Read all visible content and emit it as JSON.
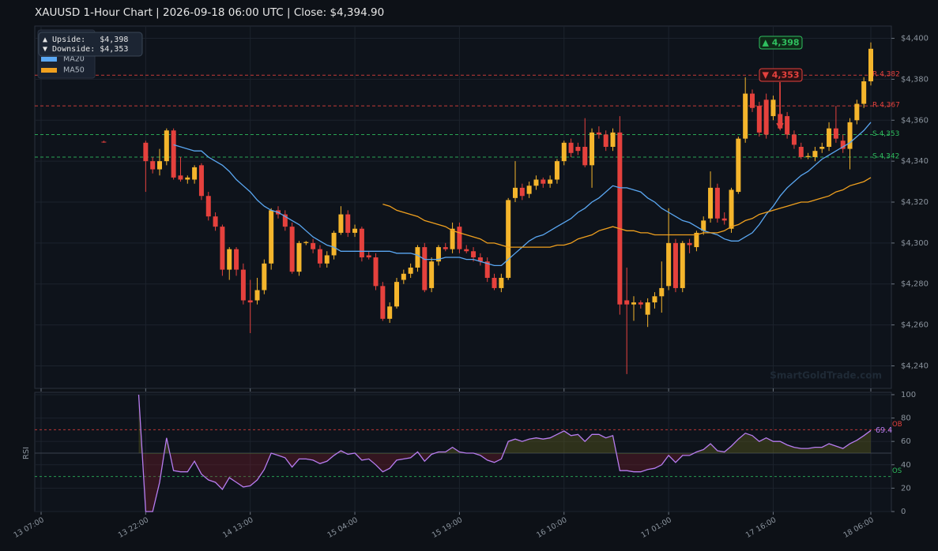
{
  "chart_data": [
    {
      "type": "candlestick",
      "title": "XAUUSD  1-Hour Chart  |  2026-09-18 06:00 UTC  |  Close: $4,394.90",
      "categories": [
        "13 07:00",
        null,
        null,
        null,
        null,
        null,
        null,
        null,
        null,
        null,
        null,
        null,
        null,
        null,
        null,
        "13 22:00",
        null,
        null,
        null,
        null,
        null,
        null,
        null,
        null,
        null,
        null,
        null,
        null,
        null,
        null,
        "14 13:00",
        null,
        null,
        null,
        null,
        null,
        null,
        null,
        null,
        null,
        null,
        null,
        null,
        null,
        null,
        "15 04:00",
        null,
        null,
        null,
        null,
        null,
        null,
        null,
        null,
        null,
        null,
        null,
        null,
        null,
        null,
        "15 19:00",
        null,
        null,
        null,
        null,
        null,
        null,
        null,
        null,
        null,
        null,
        null,
        null,
        null,
        null,
        "16 10:00",
        null,
        null,
        null,
        null,
        null,
        null,
        null,
        null,
        null,
        null,
        null,
        null,
        null,
        null,
        "17 01:00",
        null,
        null,
        null,
        null,
        null,
        null,
        null,
        null,
        null,
        null,
        null,
        null,
        null,
        null,
        "17 16:00",
        null,
        null,
        null,
        null,
        null,
        null,
        null,
        null,
        null,
        null,
        null,
        null,
        null,
        "18 06:00"
      ],
      "open": [
        null,
        null,
        null,
        null,
        null,
        null,
        null,
        null,
        null,
        4349.5,
        null,
        null,
        null,
        null,
        null,
        4349,
        4340,
        4336,
        4340,
        4355,
        4333,
        4331,
        4331,
        4338,
        4323,
        4313,
        4308,
        4287,
        4297,
        4287,
        4272,
        4272,
        4277,
        4290,
        4316,
        4314,
        4308,
        4286,
        4300,
        4300,
        4297,
        4290,
        4294,
        4305,
        4314,
        4305,
        4307,
        4294,
        4293,
        4279,
        4263,
        4269,
        4282,
        4285,
        4288,
        4298,
        4278,
        4291,
        4298,
        4297,
        4308,
        4297,
        4296,
        4293,
        4291,
        4283,
        4278,
        4283,
        4322,
        4327,
        4324,
        4328,
        4331,
        4329,
        4331,
        4340,
        4349,
        4347,
        4347,
        4338,
        4354,
        4353,
        4347,
        4354,
        4272,
        4270,
        4271,
        4265,
        4271,
        4274,
        4279,
        4300,
        4278,
        4300,
        4298,
        4306,
        4312,
        4327,
        4312,
        4307,
        4325,
        4351,
        4373,
        4367,
        4370,
        4362,
        4363,
        4362,
        4353,
        4347,
        4342,
        4342,
        4346,
        4347,
        4356,
        4350,
        4346,
        4360,
        4368,
        4379
      ],
      "high": [
        null,
        null,
        null,
        null,
        null,
        null,
        null,
        null,
        null,
        4350,
        null,
        null,
        null,
        null,
        null,
        4350,
        4342,
        4346,
        4356,
        4356,
        4342,
        4333,
        4338,
        4339,
        4325,
        4315,
        4309,
        4298,
        4298,
        4290,
        4282,
        4283,
        4292,
        4317,
        4318,
        4316,
        4310,
        4301,
        4301,
        4302,
        4299,
        4296,
        4306,
        4318,
        4316,
        4309,
        4308,
        4296,
        4295,
        4281,
        4271,
        4283,
        4287,
        4290,
        4299,
        4300,
        4293,
        4299,
        4300,
        4310,
        4310,
        4299,
        4298,
        4295,
        4293,
        4285,
        4285,
        4322,
        4340,
        4329,
        4330,
        4333,
        4332,
        4333,
        4341,
        4350,
        4351,
        4349,
        4361,
        4356,
        4357,
        4355,
        4356,
        4362,
        4288,
        4274,
        4272,
        4273,
        4276,
        4291,
        4317,
        4302,
        4301,
        4302,
        4306,
        4313,
        4335,
        4329,
        4315,
        4327,
        4352,
        4381,
        4375,
        4369,
        4373,
        4372,
        4377,
        4364,
        4355,
        4349,
        4344,
        4347,
        4349,
        4359,
        4367,
        4353,
        4361,
        4370,
        4381,
        4398
      ],
      "low": [
        null,
        null,
        null,
        null,
        null,
        null,
        null,
        null,
        null,
        4349,
        null,
        null,
        null,
        null,
        null,
        4325,
        4334,
        4333,
        4338,
        4331,
        4330,
        4329,
        4329,
        4321,
        4311,
        4306,
        4284,
        4282,
        4284,
        4270,
        4256,
        4270,
        4275,
        4287,
        4312,
        4306,
        4285,
        4284,
        4299,
        4295,
        4288,
        4288,
        4292,
        4304,
        4303,
        4303,
        4291,
        4292,
        4277,
        4262,
        4261,
        4268,
        4280,
        4283,
        4286,
        4276,
        4276,
        4289,
        4296,
        4295,
        4295,
        4295,
        4291,
        4289,
        4281,
        4277,
        4276,
        4282,
        4320,
        4321,
        4322,
        4326,
        4327,
        4327,
        4329,
        4338,
        4342,
        4343,
        4337,
        4327,
        4351,
        4345,
        4345,
        4265,
        4236,
        4262,
        4268,
        4259,
        4268,
        4266,
        4277,
        4276,
        4276,
        4295,
        4296,
        4304,
        4310,
        4310,
        4309,
        4305,
        4324,
        4349,
        4364,
        4352,
        4351,
        4360,
        4355,
        4351,
        4346,
        4341,
        4341,
        4340,
        4344,
        4345,
        4349,
        4344,
        4336,
        4358,
        4366,
        4377
      ],
      "close": [
        null,
        null,
        null,
        null,
        null,
        null,
        null,
        null,
        null,
        4349.3,
        null,
        null,
        null,
        null,
        null,
        4340,
        4336,
        4340,
        4355,
        4332,
        4331,
        4332,
        4337,
        4323,
        4313,
        4308,
        4287,
        4297,
        4287,
        4272,
        4271,
        4277,
        4290,
        4316,
        4314,
        4308,
        4286,
        4300,
        4300.5,
        4297,
        4290,
        4294,
        4305,
        4314,
        4305,
        4307,
        4293,
        4293,
        4279,
        4263,
        4269,
        4281,
        4285,
        4288,
        4298,
        4277,
        4291,
        4298,
        4297,
        4307,
        4297,
        4296,
        4293,
        4291,
        4283,
        4278,
        4283,
        4321,
        4327,
        4323,
        4328,
        4331,
        4329,
        4331,
        4340,
        4349,
        4344,
        4345,
        4338,
        4354,
        4353,
        4347,
        4354,
        4270,
        4270,
        4271,
        4270,
        4271,
        4274,
        4278,
        4300,
        4278,
        4300,
        4299,
        4305,
        4311,
        4327,
        4312,
        4311,
        4326,
        4351,
        4373,
        4366,
        4354,
        4353,
        4370,
        4356,
        4353,
        4348,
        4342,
        4342.5,
        4345,
        4347,
        4356,
        4351,
        4346,
        4359,
        4368,
        4379,
        4394.9
      ],
      "colors": {
        "up": "#f4b52c",
        "down": "#e5413d"
      },
      "series": [
        {
          "name": "MA20",
          "color": "#5aa7f2",
          "values": [
            null,
            null,
            null,
            null,
            null,
            null,
            null,
            null,
            null,
            null,
            null,
            null,
            null,
            null,
            null,
            null,
            null,
            null,
            null,
            4348,
            4347,
            4346,
            4345,
            4345,
            4342,
            4340,
            4338,
            4335,
            4331,
            4328,
            4325,
            4321,
            4318,
            4316,
            4315,
            4313,
            4311,
            4309,
            4306,
            4303,
            4301,
            4299,
            4298,
            4296,
            4296,
            4296,
            4296,
            4296,
            4296,
            4296,
            4296,
            4295,
            4295,
            4295,
            4294,
            4292,
            4292,
            4292,
            4293,
            4293,
            4293,
            4292,
            4292,
            4291,
            4290,
            4289,
            4289,
            4292,
            4295,
            4298,
            4301,
            4303,
            4304,
            4306,
            4308,
            4310,
            4312,
            4315,
            4317,
            4320,
            4322,
            4325,
            4328,
            4327,
            4327,
            4326,
            4325,
            4322,
            4320,
            4317,
            4315,
            4313,
            4311,
            4310,
            4308,
            4306,
            4305,
            4304,
            4302,
            4301,
            4301,
            4303,
            4305,
            4309,
            4314,
            4318,
            4323,
            4327,
            4330,
            4333,
            4335,
            4338,
            4341,
            4343,
            4345,
            4347,
            4349,
            4352,
            4355,
            4359
          ]
        },
        {
          "name": "MA50",
          "color": "#f0a01e",
          "values": [
            null,
            null,
            null,
            null,
            null,
            null,
            null,
            null,
            null,
            null,
            null,
            null,
            null,
            null,
            null,
            null,
            null,
            null,
            null,
            null,
            null,
            null,
            null,
            null,
            null,
            null,
            null,
            null,
            null,
            null,
            null,
            null,
            null,
            null,
            null,
            null,
            null,
            null,
            null,
            null,
            null,
            null,
            null,
            null,
            null,
            null,
            null,
            null,
            null,
            4319,
            4318,
            4316,
            4315,
            4314,
            4313,
            4311,
            4310,
            4309,
            4308,
            4306,
            4305,
            4304,
            4303,
            4302,
            4300,
            4300,
            4299,
            4298,
            4298,
            4298,
            4298,
            4298,
            4298,
            4298,
            4299,
            4299,
            4300,
            4302,
            4303,
            4304,
            4306,
            4307,
            4308,
            4307,
            4306,
            4306,
            4305,
            4305,
            4304,
            4304,
            4304,
            4304,
            4304,
            4304,
            4304,
            4305,
            4305,
            4305,
            4306,
            4308,
            4309,
            4311,
            4312,
            4314,
            4315,
            4316,
            4317,
            4318,
            4319,
            4320,
            4320,
            4321,
            4322,
            4323,
            4325,
            4326,
            4328,
            4329,
            4330,
            4332
          ]
        }
      ],
      "ylim": [
        4229,
        4406
      ],
      "yticks": [
        {
          "value": 4240,
          "label": "$4,240"
        },
        {
          "value": 4260,
          "label": "$4,260"
        },
        {
          "value": 4280,
          "label": "$4,280"
        },
        {
          "value": 4300,
          "label": "$4,300"
        },
        {
          "value": 4320,
          "label": "$4,320"
        },
        {
          "value": 4340,
          "label": "$4,340"
        },
        {
          "value": 4360,
          "label": "$4,360"
        },
        {
          "value": 4380,
          "label": "$4,380"
        },
        {
          "value": 4400,
          "label": "$4,400"
        }
      ],
      "levels": [
        {
          "value": 4382,
          "label": "R 4,382",
          "color": "#e5413d"
        },
        {
          "value": 4367,
          "label": "R 4,367",
          "color": "#e5413d"
        },
        {
          "value": 4353,
          "label": "S 4,353",
          "color": "#2fbf5f"
        },
        {
          "value": 4342,
          "label": "S 4,342",
          "color": "#2fbf5f"
        }
      ],
      "badges": [
        {
          "label": "▲ 4,398",
          "color": "#2fbf5f"
        },
        {
          "label": "▼ 4,353",
          "color": "#e5413d"
        }
      ],
      "info": [
        "▲ Upside:   $4,398",
        "▼ Downside: $4,353"
      ],
      "watermark": "SmartGoldTrade.com",
      "grid": true
    },
    {
      "type": "line",
      "y_label": "RSI",
      "color": "#b77cf0",
      "values": [
        null,
        null,
        null,
        null,
        null,
        null,
        null,
        null,
        null,
        null,
        null,
        null,
        null,
        null,
        100,
        0,
        0,
        25,
        63,
        35,
        34,
        34,
        43,
        32,
        27,
        25,
        19,
        29,
        25,
        21,
        22,
        27,
        36,
        50,
        48,
        46,
        38,
        45,
        45,
        44,
        41,
        43,
        48,
        52,
        49,
        50,
        44,
        45,
        40,
        34,
        37,
        44,
        45,
        46,
        51,
        43,
        49,
        51,
        51,
        55,
        51,
        50,
        50,
        48,
        44,
        42,
        45,
        60,
        62,
        60,
        62,
        63,
        62,
        63,
        66,
        69,
        65,
        66,
        60,
        66,
        66,
        63,
        65,
        35,
        35,
        34,
        34,
        36,
        37,
        40,
        48,
        42,
        48,
        48,
        51,
        53,
        58,
        52,
        51,
        56,
        62,
        67,
        65,
        60,
        63,
        60,
        60,
        57,
        55,
        54,
        54,
        55,
        55,
        58,
        56,
        54,
        58,
        61,
        65,
        69.4
      ],
      "ylim": [
        0,
        102
      ],
      "yticks": [
        0,
        20,
        40,
        60,
        80,
        100
      ],
      "midline": 50,
      "levels": [
        {
          "value": 70,
          "label": "OB",
          "color": "#e5413d"
        },
        {
          "value": 30,
          "label": "OS",
          "color": "#2fbf5f"
        }
      ],
      "grid": true
    }
  ]
}
